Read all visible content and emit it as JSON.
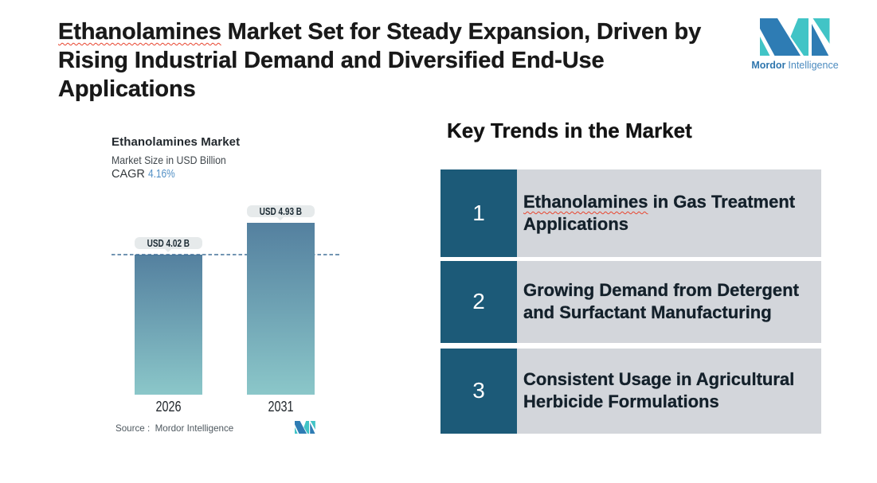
{
  "header": {
    "title_misspelled": "Ethanolamines",
    "title_line1_rest": " Market Set for Steady Expansion, Driven by",
    "title_line2": "Rising Industrial Demand and Diversified End-Use",
    "title_line3": "Applications"
  },
  "logo": {
    "brand_bold": "Mordor",
    "brand_light": "Intelligence",
    "blue": "#2e7cb4",
    "teal": "#41c4c6"
  },
  "chart_data": {
    "type": "bar",
    "title": "Ethanolamines Market",
    "subtitle": "Market Size in USD Billion",
    "cagr_label": "CAGR",
    "cagr_value": "4.16%",
    "categories": [
      "2026",
      "2031"
    ],
    "values": [
      4.02,
      4.93
    ],
    "value_labels": [
      "USD 4.02 B",
      "USD 4.93 B"
    ],
    "ylim": [
      0,
      4.93
    ],
    "reference_line_at": 4.02,
    "source": "Source :  Mordor Intelligence",
    "bar_gradient_top": "#5580a2",
    "bar_gradient_bottom": "#87c3c6",
    "dashed_line_color": "#5c85a8"
  },
  "trends": {
    "heading": "Key Trends in the Market",
    "number_box_color": "#1d5a77",
    "row_bg_color": "#d3d6db",
    "items": [
      {
        "number": "1",
        "lead": "Ethanolamines",
        "rest": " in Gas Treatment Applications"
      },
      {
        "number": "2",
        "lead": "",
        "rest": "Growing Demand from Detergent and Surfactant Manufacturing"
      },
      {
        "number": "3",
        "lead": "",
        "rest": "Consistent Usage in Agricultural Herbicide Formulations"
      }
    ]
  }
}
